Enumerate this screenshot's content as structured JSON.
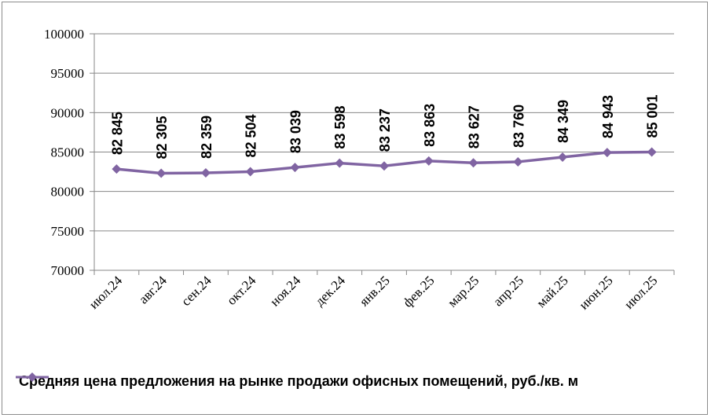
{
  "chart_data": {
    "type": "line",
    "categories": [
      "июл.24",
      "авг.24",
      "сен.24",
      "окт.24",
      "ноя.24",
      "дек.24",
      "янв.25",
      "фев.25",
      "мар.25",
      "апр.25",
      "май.25",
      "июн.25",
      "июл.25"
    ],
    "series": [
      {
        "name": "Средняя цена предложения на рынке продажи офисных помещений,  руб./кв. м",
        "values": [
          82845,
          82305,
          82359,
          82504,
          83039,
          83598,
          83237,
          83863,
          83627,
          83760,
          84349,
          84943,
          85001
        ],
        "data_labels": [
          "82 845",
          "82 305",
          "82 359",
          "82 504",
          "83 039",
          "83 598",
          "83 237",
          "83 863",
          "83 627",
          "83 760",
          "84 349",
          "84 943",
          "85 001"
        ],
        "color": "#8064a2"
      }
    ],
    "ylim": [
      70000,
      100000
    ],
    "yticks": [
      "70000",
      "75000",
      "80000",
      "85000",
      "90000",
      "95000",
      "100000"
    ],
    "ytick_values": [
      70000,
      75000,
      80000,
      85000,
      90000,
      95000,
      100000
    ],
    "grid": true,
    "legend_position": "bottom",
    "marker": "diamond"
  }
}
